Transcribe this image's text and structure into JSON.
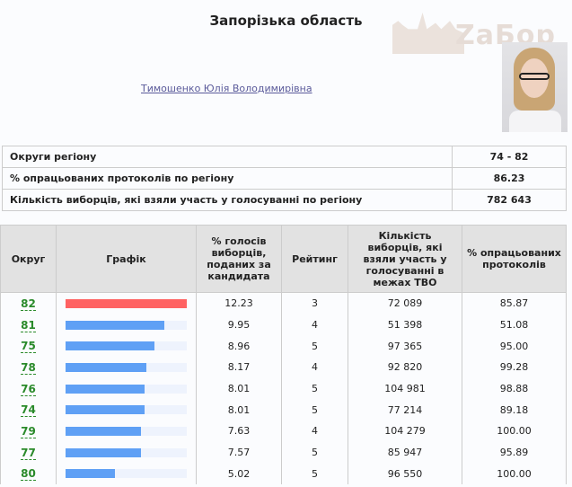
{
  "title": "Запорізька область",
  "logo_text": "ZaБор",
  "candidate": "Тимошенко Юлія Володимирівна",
  "info": [
    {
      "label": "Округи регіону",
      "value": "74 - 82"
    },
    {
      "label": "% опрацьованих протоколів по регіону",
      "value": "86.23"
    },
    {
      "label": "Кількість виборців, які взяли участь у голосуванні по регіону",
      "value": "782 643"
    }
  ],
  "headers": [
    "Округ",
    "Графік",
    "% голосів виборців, поданих за кандидата",
    "Рейтинг",
    "Кількість виборців, які взяли участь у голосуванні в межах ТВО",
    "% опрацьованих протоколів"
  ],
  "colors": {
    "top": "#ff6262",
    "other": "#5fa0f5",
    "link": "#2a8a2a"
  },
  "rows": [
    {
      "district": "82",
      "pct": "12.23",
      "rank": "3",
      "voters": "72 089",
      "processed": "85.87"
    },
    {
      "district": "81",
      "pct": "9.95",
      "rank": "4",
      "voters": "51 398",
      "processed": "51.08"
    },
    {
      "district": "75",
      "pct": "8.96",
      "rank": "5",
      "voters": "97 365",
      "processed": "95.00"
    },
    {
      "district": "78",
      "pct": "8.17",
      "rank": "4",
      "voters": "92 820",
      "processed": "99.28"
    },
    {
      "district": "76",
      "pct": "8.01",
      "rank": "5",
      "voters": "104 981",
      "processed": "98.88"
    },
    {
      "district": "74",
      "pct": "8.01",
      "rank": "5",
      "voters": "77 214",
      "processed": "89.18"
    },
    {
      "district": "79",
      "pct": "7.63",
      "rank": "4",
      "voters": "104 279",
      "processed": "100.00"
    },
    {
      "district": "77",
      "pct": "7.57",
      "rank": "5",
      "voters": "85 947",
      "processed": "95.89"
    },
    {
      "district": "80",
      "pct": "5.02",
      "rank": "5",
      "voters": "96 550",
      "processed": "100.00"
    }
  ]
}
